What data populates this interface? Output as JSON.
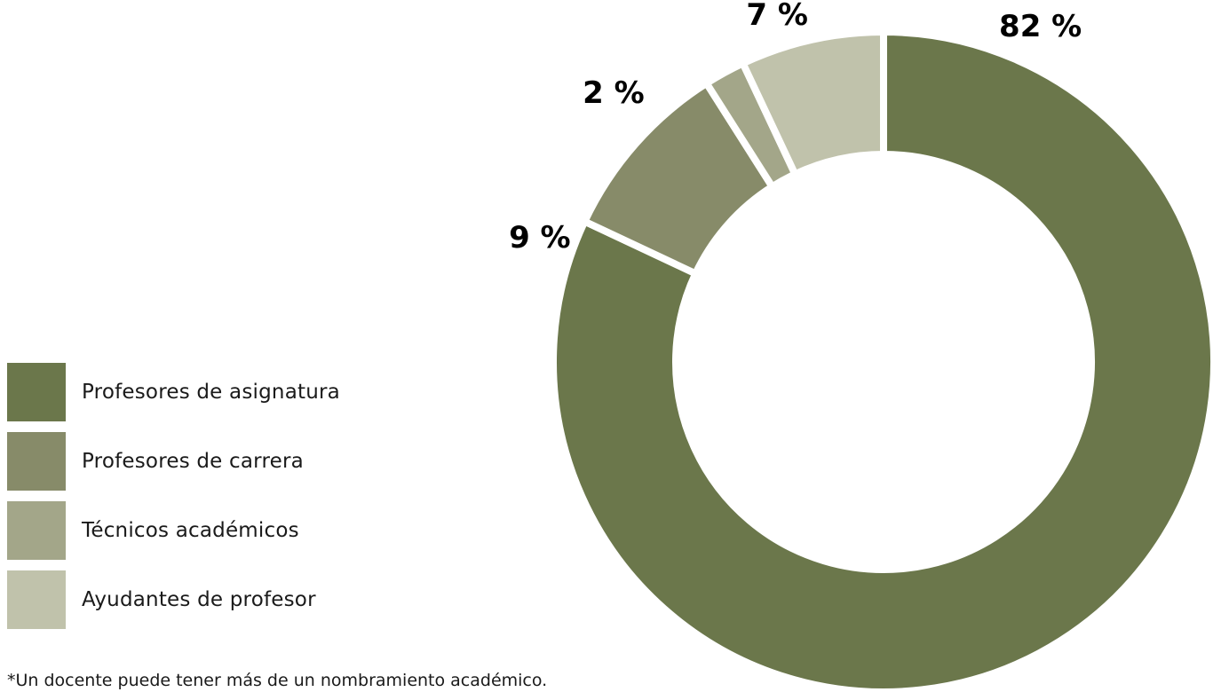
{
  "chart_data": {
    "type": "pie",
    "variant": "donut",
    "series": [
      {
        "name": "Profesores de asignatura",
        "value": 82,
        "label": "82 %",
        "color": "#6b774b"
      },
      {
        "name": "Profesores de carrera",
        "value": 9,
        "label": "9 %",
        "color": "#878b69"
      },
      {
        "name": "Técnicos académicos",
        "value": 2,
        "label": "2 %",
        "color": "#a3a689"
      },
      {
        "name": "Ayudantes de profesor",
        "value": 7,
        "label": "7 %",
        "color": "#c0c2ab"
      }
    ],
    "legend_position": "left"
  },
  "footnote": "*Un docente puede tener más de un nombramiento académico."
}
